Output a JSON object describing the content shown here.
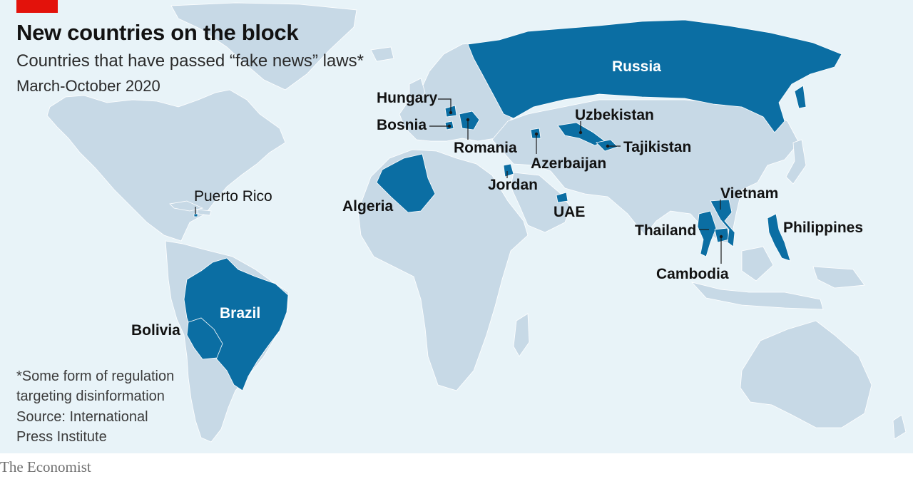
{
  "title": "New countries on the block",
  "subtitle": "Countries that have passed “fake news” laws*",
  "date_range": "March-October 2020",
  "footnote": "*Some form of regulation targeting disinformation",
  "footnote_lines": [
    "*Some form of regulation",
    "targeting disinformation"
  ],
  "source": "Source: International Press Institute",
  "source_lines": [
    "Source: International",
    "Press Institute"
  ],
  "brand": "The Economist",
  "colors": {
    "highlight": "#0b6ea3",
    "land": "#c7d9e6",
    "water": "#e8f3f8",
    "brand_red": "#e3120b"
  },
  "highlighted_countries": [
    "Russia",
    "Hungary",
    "Bosnia",
    "Romania",
    "Uzbekistan",
    "Tajikistan",
    "Azerbaijan",
    "Jordan",
    "UAE",
    "Algeria",
    "Puerto Rico",
    "Vietnam",
    "Thailand",
    "Cambodia",
    "Philippines",
    "Brazil",
    "Bolivia"
  ]
}
